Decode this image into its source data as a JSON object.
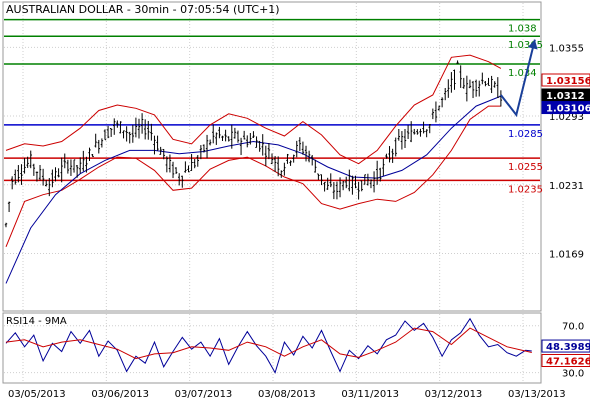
{
  "title": "AUSTRALIAN DOLLAR - 30min - 07:05:54 (UTC+1)",
  "rsi_label": "RSI14 - 9MA",
  "colors": {
    "resistance": "#008000",
    "support": "#cc0000",
    "pivot": "#0000cc",
    "price": "#000000",
    "bollinger": "#cc0000",
    "ma": "#000099",
    "rsi": "#000099",
    "rsi_ma": "#cc0000",
    "arrow": "#1a3f99"
  },
  "chart_data": [
    {
      "type": "candlestick",
      "instrument": "AUSTRALIAN DOLLAR",
      "timeframe": "30min",
      "x_ticks": [
        "03/05/2013",
        "03/06/2013",
        "03/07/2013",
        "03/08/2013",
        "03/11/2013",
        "03/12/2013",
        "03/13/2013"
      ],
      "y_ticks": [
        1.0355,
        1.0293,
        1.0231,
        1.0169
      ],
      "ylim": [
        1.0118,
        1.0395
      ],
      "levels": [
        {
          "label": "1.038",
          "value": 1.038,
          "kind": "resistance"
        },
        {
          "label": "1.0365",
          "value": 1.0365,
          "kind": "resistance"
        },
        {
          "label": "1.034",
          "value": 1.034,
          "kind": "resistance"
        },
        {
          "label": "1.0285",
          "value": 1.0285,
          "kind": "pivot"
        },
        {
          "label": "1.0255",
          "value": 1.0255,
          "kind": "support"
        },
        {
          "label": "1.0235",
          "value": 1.0235,
          "kind": "support"
        }
      ],
      "badges": [
        {
          "label": "1.03156",
          "value": 1.03156,
          "style": "upper-band"
        },
        {
          "label": "1.0312",
          "value": 1.0312,
          "style": "last-price"
        },
        {
          "label": "1.03106",
          "value": 1.03106,
          "style": "ma"
        }
      ],
      "price_path": [
        [
          0,
          1.0195
        ],
        [
          2,
          1.0235
        ],
        [
          5,
          1.0245
        ],
        [
          8,
          1.0252
        ],
        [
          11,
          1.024
        ],
        [
          14,
          1.0232
        ],
        [
          17,
          1.0242
        ],
        [
          20,
          1.025
        ],
        [
          24,
          1.0246
        ],
        [
          28,
          1.0262
        ],
        [
          32,
          1.0276
        ],
        [
          35,
          1.0285
        ],
        [
          38,
          1.0282
        ],
        [
          41,
          1.0275
        ],
        [
          44,
          1.0284
        ],
        [
          47,
          1.0278
        ],
        [
          50,
          1.0262
        ],
        [
          53,
          1.0248
        ],
        [
          56,
          1.0238
        ],
        [
          59,
          1.0246
        ],
        [
          62,
          1.0253
        ],
        [
          65,
          1.0268
        ],
        [
          68,
          1.0276
        ],
        [
          71,
          1.0272
        ],
        [
          74,
          1.0274
        ],
        [
          77,
          1.0271
        ],
        [
          80,
          1.0273
        ],
        [
          83,
          1.0266
        ],
        [
          86,
          1.0256
        ],
        [
          89,
          1.0246
        ],
        [
          92,
          1.0256
        ],
        [
          95,
          1.0266
        ],
        [
          98,
          1.0258
        ],
        [
          101,
          1.0242
        ],
        [
          104,
          1.0228
        ],
        [
          107,
          1.0226
        ],
        [
          110,
          1.0235
        ],
        [
          113,
          1.023
        ],
        [
          116,
          1.0234
        ],
        [
          119,
          1.0236
        ],
        [
          122,
          1.0246
        ],
        [
          125,
          1.0262
        ],
        [
          128,
          1.0272
        ],
        [
          131,
          1.0276
        ],
        [
          134,
          1.0283
        ],
        [
          137,
          1.0285
        ],
        [
          140,
          1.0302
        ],
        [
          143,
          1.0315
        ],
        [
          146,
          1.0335
        ],
        [
          149,
          1.0318
        ],
        [
          152,
          1.0322
        ],
        [
          155,
          1.0326
        ],
        [
          158,
          1.0318
        ],
        [
          160,
          1.0312
        ]
      ],
      "bollinger_upper": [
        [
          0,
          1.0262
        ],
        [
          6,
          1.0268
        ],
        [
          12,
          1.0266
        ],
        [
          18,
          1.027
        ],
        [
          24,
          1.0282
        ],
        [
          30,
          1.0298
        ],
        [
          36,
          1.0303
        ],
        [
          42,
          1.03
        ],
        [
          48,
          1.0294
        ],
        [
          54,
          1.0272
        ],
        [
          60,
          1.0268
        ],
        [
          66,
          1.0285
        ],
        [
          72,
          1.0295
        ],
        [
          78,
          1.0291
        ],
        [
          84,
          1.0282
        ],
        [
          90,
          1.0275
        ],
        [
          96,
          1.0288
        ],
        [
          102,
          1.0276
        ],
        [
          108,
          1.0258
        ],
        [
          114,
          1.025
        ],
        [
          120,
          1.0262
        ],
        [
          126,
          1.0284
        ],
        [
          132,
          1.0303
        ],
        [
          138,
          1.0312
        ],
        [
          144,
          1.0346
        ],
        [
          150,
          1.0348
        ],
        [
          156,
          1.0342
        ],
        [
          160,
          1.0336
        ]
      ],
      "bollinger_lower": [
        [
          0,
          1.0175
        ],
        [
          6,
          1.0216
        ],
        [
          12,
          1.0222
        ],
        [
          18,
          1.0226
        ],
        [
          24,
          1.0236
        ],
        [
          30,
          1.0247
        ],
        [
          36,
          1.0256
        ],
        [
          42,
          1.0255
        ],
        [
          48,
          1.0244
        ],
        [
          54,
          1.0226
        ],
        [
          60,
          1.0228
        ],
        [
          66,
          1.0245
        ],
        [
          72,
          1.0253
        ],
        [
          78,
          1.0256
        ],
        [
          84,
          1.0248
        ],
        [
          90,
          1.0238
        ],
        [
          96,
          1.0232
        ],
        [
          102,
          1.0214
        ],
        [
          108,
          1.0209
        ],
        [
          114,
          1.0214
        ],
        [
          120,
          1.0218
        ],
        [
          126,
          1.0216
        ],
        [
          132,
          1.0224
        ],
        [
          138,
          1.024
        ],
        [
          144,
          1.0262
        ],
        [
          150,
          1.029
        ],
        [
          156,
          1.0302
        ],
        [
          160,
          1.0302
        ]
      ],
      "moving_average": [
        [
          0,
          1.0142
        ],
        [
          8,
          1.0192
        ],
        [
          16,
          1.0222
        ],
        [
          24,
          1.0241
        ],
        [
          32,
          1.0253
        ],
        [
          40,
          1.0262
        ],
        [
          48,
          1.0262
        ],
        [
          56,
          1.0259
        ],
        [
          64,
          1.0261
        ],
        [
          72,
          1.0266
        ],
        [
          80,
          1.027
        ],
        [
          88,
          1.0267
        ],
        [
          96,
          1.0259
        ],
        [
          104,
          1.0247
        ],
        [
          112,
          1.0238
        ],
        [
          120,
          1.0237
        ],
        [
          128,
          1.0244
        ],
        [
          136,
          1.0258
        ],
        [
          144,
          1.0282
        ],
        [
          152,
          1.0302
        ],
        [
          160,
          1.0311
        ]
      ],
      "projection": [
        [
          160,
          1.0312
        ],
        [
          165,
          1.0294
        ],
        [
          171,
          1.0362
        ]
      ]
    },
    {
      "type": "line",
      "indicator": "RSI14 - 9MA",
      "y_ticks": [
        70.0,
        30.0
      ],
      "ylim": [
        22,
        80
      ],
      "badges": [
        {
          "label": "48.3989",
          "value": 48.3989,
          "series": "rsi"
        },
        {
          "label": "47.1626",
          "value": 47.1626,
          "series": "rsi_ma"
        }
      ],
      "series": [
        {
          "key": "rsi",
          "values": [
            [
              0,
              55
            ],
            [
              3,
              64
            ],
            [
              6,
              52
            ],
            [
              9,
              62
            ],
            [
              12,
              40
            ],
            [
              15,
              55
            ],
            [
              18,
              48
            ],
            [
              21,
              65
            ],
            [
              24,
              55
            ],
            [
              27,
              66
            ],
            [
              30,
              44
            ],
            [
              33,
              57
            ],
            [
              36,
              49
            ],
            [
              39,
              31
            ],
            [
              42,
              44
            ],
            [
              45,
              38
            ],
            [
              48,
              56
            ],
            [
              51,
              35
            ],
            [
              54,
              48
            ],
            [
              57,
              60
            ],
            [
              60,
              50
            ],
            [
              63,
              56
            ],
            [
              66,
              44
            ],
            [
              69,
              59
            ],
            [
              72,
              37
            ],
            [
              75,
              52
            ],
            [
              78,
              65
            ],
            [
              81,
              53
            ],
            [
              84,
              44
            ],
            [
              87,
              30
            ],
            [
              90,
              56
            ],
            [
              93,
              45
            ],
            [
              96,
              61
            ],
            [
              99,
              51
            ],
            [
              102,
              66
            ],
            [
              105,
              48
            ],
            [
              108,
              31
            ],
            [
              111,
              49
            ],
            [
              114,
              42
            ],
            [
              117,
              53
            ],
            [
              120,
              46
            ],
            [
              123,
              58
            ],
            [
              126,
              62
            ],
            [
              129,
              74
            ],
            [
              132,
              66
            ],
            [
              135,
              72
            ],
            [
              138,
              60
            ],
            [
              141,
              44
            ],
            [
              144,
              58
            ],
            [
              147,
              64
            ],
            [
              150,
              76
            ],
            [
              153,
              62
            ],
            [
              156,
              52
            ],
            [
              159,
              54
            ],
            [
              162,
              47
            ],
            [
              165,
              44
            ],
            [
              168,
              49
            ],
            [
              170,
              48.4
            ]
          ]
        },
        {
          "key": "rsi_ma",
          "values": [
            [
              0,
              56
            ],
            [
              6,
              58
            ],
            [
              12,
              52
            ],
            [
              18,
              56
            ],
            [
              24,
              58
            ],
            [
              30,
              54
            ],
            [
              36,
              50
            ],
            [
              42,
              42
            ],
            [
              48,
              46
            ],
            [
              54,
              47
            ],
            [
              60,
              52
            ],
            [
              66,
              51
            ],
            [
              72,
              49
            ],
            [
              78,
              56
            ],
            [
              84,
              52
            ],
            [
              90,
              44
            ],
            [
              96,
              52
            ],
            [
              102,
              58
            ],
            [
              108,
              46
            ],
            [
              114,
              43
            ],
            [
              120,
              49
            ],
            [
              126,
              56
            ],
            [
              132,
              68
            ],
            [
              138,
              65
            ],
            [
              144,
              54
            ],
            [
              150,
              68
            ],
            [
              156,
              60
            ],
            [
              162,
              52
            ],
            [
              170,
              47.2
            ]
          ]
        }
      ]
    }
  ]
}
